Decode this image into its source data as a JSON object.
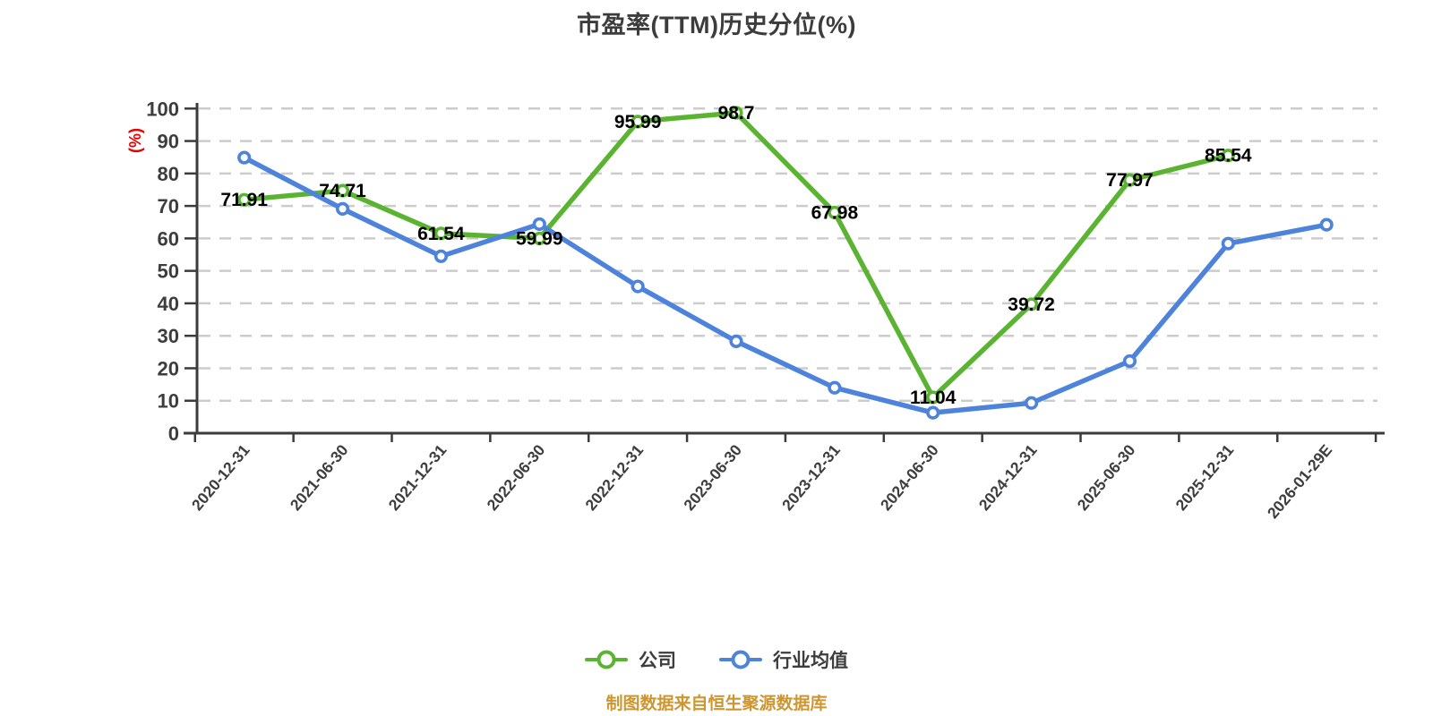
{
  "title": "市盈率(TTM)历史分位(%)",
  "footer": "制图数据来自恒生聚源数据库",
  "legend": {
    "items": [
      {
        "label": "公司",
        "color": "#5bb431"
      },
      {
        "label": "行业均值",
        "color": "#4e83db"
      }
    ]
  },
  "colors": {
    "company_line": "#5bb431",
    "industry_line": "#4e83db",
    "grid": "#cccccc",
    "axis": "#3b3b3b",
    "title_text": "#3c3c3c",
    "tick_label_text": "#3e3e3e",
    "data_label_text": "#000000",
    "y_axis_unit_text": "#e60000",
    "footer_text": "#cd9630",
    "background": "#ffffff"
  },
  "chart_data": {
    "type": "line",
    "title": "市盈率(TTM)历史分位(%)",
    "ylabel": "(%)",
    "xlabel": "",
    "ylim": [
      0,
      100
    ],
    "y_ticks": [
      0,
      10,
      20,
      30,
      40,
      50,
      60,
      70,
      80,
      90,
      100
    ],
    "grid": "horizontal-dashed",
    "legend_position": "bottom",
    "x_label_rotation_deg": -50,
    "categories": [
      "2020-12-31",
      "2021-06-30",
      "2021-12-31",
      "2022-06-30",
      "2022-12-31",
      "2023-06-30",
      "2023-12-31",
      "2024-06-30",
      "2024-12-31",
      "2025-06-30",
      "2025-12-31",
      "2026-01-29E"
    ],
    "series": [
      {
        "name": "公司",
        "color": "#5bb431",
        "show_labels": true,
        "values": [
          71.91,
          74.71,
          61.54,
          59.99,
          95.99,
          98.7,
          67.98,
          11.04,
          39.72,
          77.97,
          85.54,
          null
        ]
      },
      {
        "name": "行业均值",
        "color": "#4e83db",
        "show_labels": false,
        "values": [
          84.9,
          69.1,
          54.5,
          64.4,
          45.2,
          28.3,
          14,
          6.3,
          9.3,
          22.2,
          58.4,
          64.2
        ]
      }
    ]
  }
}
